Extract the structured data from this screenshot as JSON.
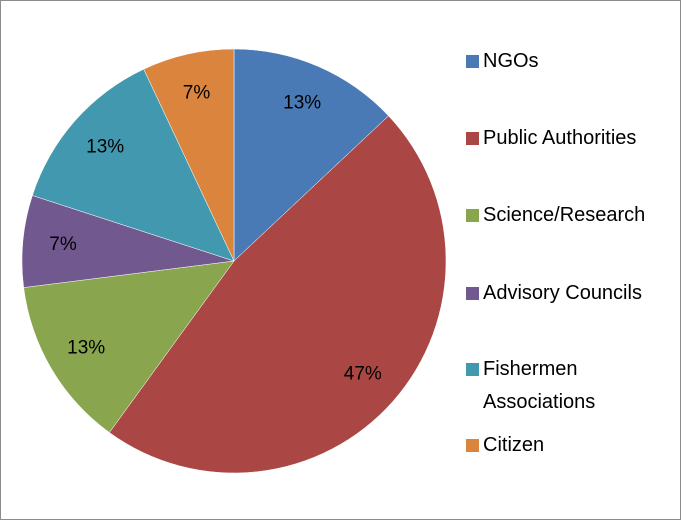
{
  "chart_data": {
    "type": "pie",
    "categories": [
      "NGOs",
      "Public Authorities",
      "Science/Research",
      "Advisory Councils",
      "Fishermen Associations",
      "Citizen"
    ],
    "values": [
      13,
      47,
      13,
      7,
      13,
      7
    ],
    "value_labels": [
      "13%",
      "47%",
      "13%",
      "7%",
      "13%",
      "7%"
    ],
    "colors": [
      "#4a7ab5",
      "#aa4643",
      "#89a54e",
      "#71588f",
      "#4198af",
      "#db843d"
    ]
  }
}
